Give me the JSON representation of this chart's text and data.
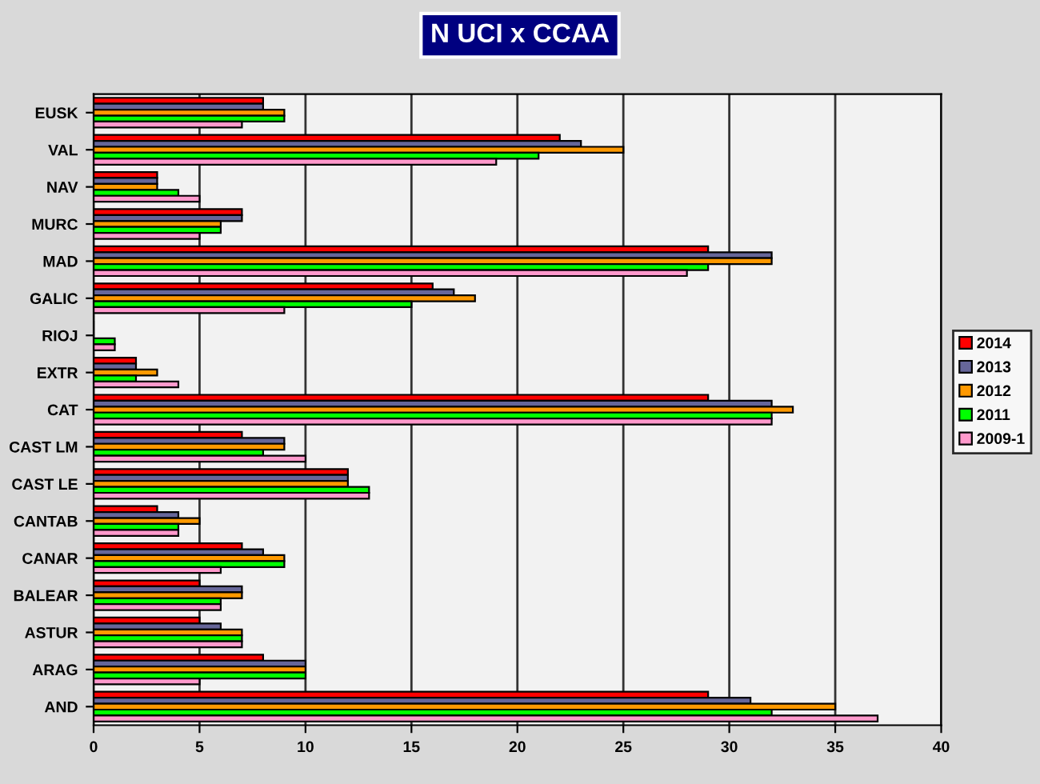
{
  "chart_data": {
    "type": "bar",
    "orientation": "horizontal",
    "title": "N UCI x CCAA",
    "categories": [
      "EUSK",
      "VAL",
      "NAV",
      "MURC",
      "MAD",
      "GALIC",
      "RIOJ",
      "EXTR",
      "CAT",
      "CAST LM",
      "CAST LE",
      "CANTAB",
      "CANAR",
      "BALEAR",
      "ASTUR",
      "ARAG",
      "AND"
    ],
    "series": [
      {
        "name": "2014",
        "color": "#ff0000",
        "values": [
          8,
          22,
          3,
          7,
          29,
          16,
          0,
          2,
          29,
          7,
          12,
          3,
          7,
          5,
          5,
          8,
          29
        ]
      },
      {
        "name": "2013",
        "color": "#666699",
        "values": [
          8,
          23,
          3,
          7,
          32,
          17,
          0,
          2,
          32,
          9,
          12,
          4,
          8,
          7,
          6,
          10,
          31
        ]
      },
      {
        "name": "2012",
        "color": "#ff9900",
        "values": [
          9,
          25,
          3,
          6,
          32,
          18,
          0,
          3,
          33,
          9,
          12,
          5,
          9,
          7,
          7,
          10,
          35
        ]
      },
      {
        "name": "2011",
        "color": "#00ff00",
        "values": [
          9,
          21,
          4,
          6,
          29,
          15,
          1,
          2,
          32,
          8,
          13,
          4,
          9,
          6,
          7,
          10,
          32
        ]
      },
      {
        "name": "2009-1",
        "color": "#ff99cc",
        "values": [
          7,
          19,
          5,
          5,
          28,
          9,
          1,
          4,
          32,
          10,
          13,
          4,
          6,
          6,
          7,
          5,
          37
        ]
      }
    ],
    "xlim": [
      0,
      40
    ],
    "xticks": [
      0,
      5,
      10,
      15,
      20,
      25,
      30,
      35,
      40
    ],
    "grid": "x",
    "legend": "right"
  }
}
